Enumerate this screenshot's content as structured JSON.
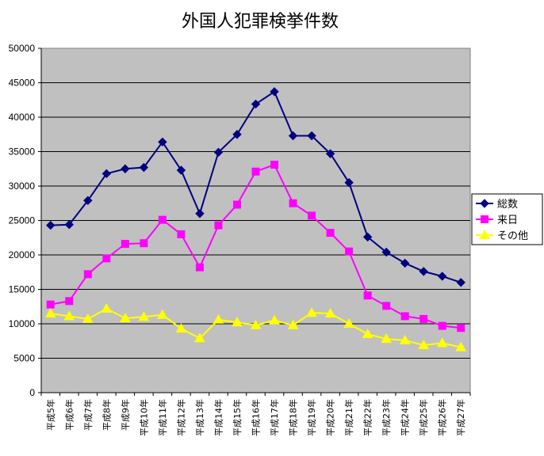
{
  "chart_data": {
    "type": "line",
    "title": "外国人犯罪検挙件数",
    "xlabel": "",
    "ylabel": "",
    "ylim": [
      0,
      50000
    ],
    "yticks": [
      "0",
      "5000",
      "10000",
      "15000",
      "20000",
      "25000",
      "30000",
      "35000",
      "40000",
      "45000",
      "50000"
    ],
    "categories": [
      "平成5年",
      "平成6年",
      "平成7年",
      "平成8年",
      "平成9年",
      "平成10年",
      "平成11年",
      "平成12年",
      "平成13年",
      "平成14年",
      "平成15年",
      "平成16年",
      "平成17年",
      "平成18年",
      "平成19年",
      "平成20年",
      "平成21年",
      "平成22年",
      "平成23年",
      "平成24年",
      "平成25年",
      "平成26年",
      "平成27年"
    ],
    "grid": true,
    "legend_position": "right",
    "plot_background": "#c0c0c0",
    "series": [
      {
        "name": "総数",
        "color": "#000080",
        "marker": "diamond",
        "values": [
          24300,
          24400,
          27900,
          31800,
          32500,
          32700,
          36400,
          32300,
          26000,
          34900,
          37500,
          41900,
          43700,
          37300,
          37300,
          34700,
          30500,
          22600,
          20400,
          18800,
          17600,
          16900,
          16000
        ]
      },
      {
        "name": "来日",
        "color": "#ff00ff",
        "marker": "square",
        "values": [
          12800,
          13300,
          17200,
          19500,
          21600,
          21700,
          25100,
          23000,
          18200,
          24300,
          27300,
          32100,
          33100,
          27500,
          25700,
          23200,
          20500,
          14100,
          12600,
          11100,
          10700,
          9700,
          9400
        ]
      },
      {
        "name": "その他",
        "color": "#ffff00",
        "marker": "triangle",
        "values": [
          11500,
          11100,
          10700,
          12200,
          10800,
          11000,
          11300,
          9300,
          7900,
          10600,
          10200,
          9800,
          10500,
          9800,
          11600,
          11500,
          10000,
          8500,
          7800,
          7600,
          6900,
          7200,
          6600
        ]
      }
    ]
  }
}
